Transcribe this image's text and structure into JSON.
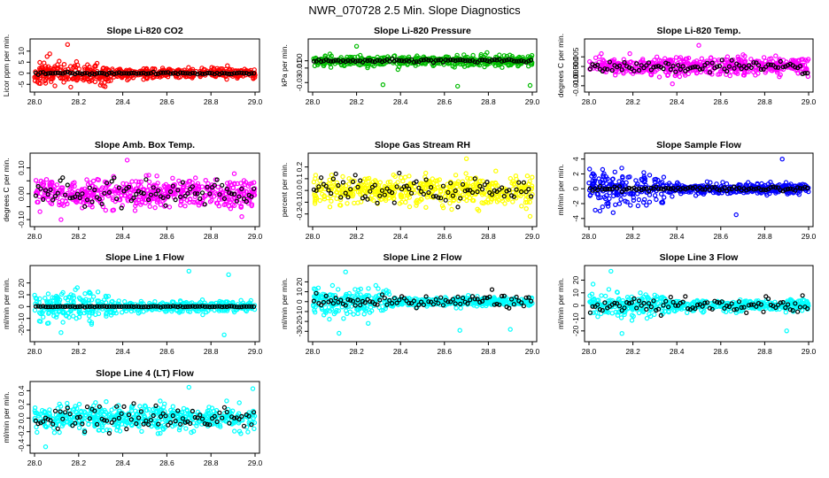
{
  "title": "NWR_070728  2.5 Min. Slope Diagnostics",
  "chart_data": [
    {
      "type": "scatter",
      "title": "Slope Li-820 CO2",
      "ylabel": "Licor ppm per min.",
      "color": "#ff0000",
      "xlim": [
        28.0,
        29.0
      ],
      "xticks": [
        "28.0",
        "28.2",
        "28.4",
        "28.6",
        "28.8",
        "29.0"
      ],
      "ylim": [
        -6.5,
        13.5
      ],
      "yticks": [
        -5,
        0,
        5,
        10
      ],
      "ytick_labels": [
        "-5",
        "0",
        "5",
        "10"
      ],
      "spread": 2.2,
      "early_spread": 4.5,
      "outliers": [
        [
          28.15,
          13
        ],
        [
          28.32,
          -6
        ],
        [
          28.05,
          -4.5
        ]
      ],
      "black_spread": 0.4,
      "seed": 11
    },
    {
      "type": "scatter",
      "title": "Slope Li-820 Pressure",
      "ylabel": "kPa per min.",
      "color": "#00bb00",
      "xlim": [
        28.0,
        29.0
      ],
      "xticks": [
        "28.0",
        "28.2",
        "28.4",
        "28.6",
        "28.8",
        "29.0"
      ],
      "ylim": [
        -0.037,
        0.024
      ],
      "yticks": [
        -0.03,
        -0.01,
        0.0
      ],
      "ytick_labels": [
        "-0.03",
        "-0.01",
        "0.00"
      ],
      "spread": 0.006,
      "early_spread": 0.006,
      "outliers": [
        [
          28.32,
          -0.033
        ],
        [
          28.66,
          -0.035
        ],
        [
          28.99,
          -0.034
        ],
        [
          28.2,
          0.02
        ]
      ],
      "black_spread": 0.002,
      "seed": 23
    },
    {
      "type": "scatter",
      "title": "Slope Li-820 Temp.",
      "ylabel": "degrees C per min.",
      "color": "#ff00ff",
      "xlim": [
        28.0,
        29.0
      ],
      "xticks": [
        "28.0",
        "28.2",
        "28.4",
        "28.6",
        "28.8",
        "29.0"
      ],
      "ylim": [
        -0.011,
        0.012
      ],
      "yticks": [
        -0.01,
        -0.005,
        0.0,
        0.005
      ],
      "ytick_labels": [
        "-0.010",
        "-0.005",
        "0.000",
        "0.005"
      ],
      "spread": 0.004,
      "early_spread": 0.004,
      "outliers": [
        [
          28.5,
          0.011
        ],
        [
          28.38,
          -0.009
        ]
      ],
      "black_spread": 0.003,
      "seed": 37
    },
    {
      "type": "scatter",
      "title": "Slope Amb. Box Temp.",
      "ylabel": "degrees C per min.",
      "color": "#ff00ff",
      "xlim": [
        28.0,
        29.0
      ],
      "xticks": [
        "28.0",
        "28.2",
        "28.4",
        "28.6",
        "28.8",
        "29.0"
      ],
      "ylim": [
        -0.11,
        0.14
      ],
      "yticks": [
        -0.1,
        0.0,
        0.1
      ],
      "ytick_labels": [
        "-0.10",
        "0.00",
        "0.10"
      ],
      "extra_ticks": [
        -0.05,
        0.05
      ],
      "spread": 0.05,
      "early_spread": 0.05,
      "outliers": [
        [
          28.42,
          0.13
        ],
        [
          28.12,
          -0.1
        ]
      ],
      "black_spread": 0.045,
      "seed": 41
    },
    {
      "type": "scatter",
      "title": "Slope Gas Stream RH",
      "ylabel": "percent per min.",
      "color": "#ffff00",
      "xlim": [
        28.0,
        29.0
      ],
      "xticks": [
        "28.0",
        "28.2",
        "28.4",
        "28.6",
        "28.8",
        "29.0"
      ],
      "ylim": [
        -0.27,
        0.28
      ],
      "yticks": [
        -0.2,
        -0.1,
        0.0,
        0.1,
        0.2
      ],
      "ytick_labels": [
        "-0.2",
        "-0.1",
        "0.0",
        "0.1",
        "0.2"
      ],
      "spread": 0.11,
      "early_spread": 0.11,
      "outliers": [
        [
          28.7,
          0.27
        ],
        [
          28.99,
          -0.22
        ]
      ],
      "black_spread": 0.09,
      "seed": 53
    },
    {
      "type": "scatter",
      "title": "Slope Sample Flow",
      "ylabel": "ml/min per min.",
      "color": "#0000ff",
      "xlim": [
        28.0,
        29.0
      ],
      "xticks": [
        "28.0",
        "28.2",
        "28.4",
        "28.6",
        "28.8",
        "29.0"
      ],
      "ylim": [
        -4.5,
        4.2
      ],
      "yticks": [
        -4,
        -2,
        0,
        2,
        4
      ],
      "ytick_labels": [
        "-4",
        "-2",
        "0",
        "2",
        "4"
      ],
      "spread": 0.6,
      "early_spread": 1.8,
      "outliers": [
        [
          28.88,
          4
        ],
        [
          28.67,
          -3.5
        ],
        [
          28.05,
          -3
        ]
      ],
      "black_spread": 0.25,
      "seed": 67
    },
    {
      "type": "scatter",
      "title": "Slope Line 1 Flow",
      "ylabel": "ml/min per min.",
      "color": "#00ffff",
      "xlim": [
        28.0,
        29.0
      ],
      "xticks": [
        "28.0",
        "28.2",
        "28.4",
        "28.6",
        "28.8",
        "29.0"
      ],
      "ylim": [
        -26,
        31
      ],
      "yticks": [
        -20,
        -10,
        0,
        10,
        20
      ],
      "ytick_labels": [
        "-20",
        "-10",
        "0",
        "10",
        "20"
      ],
      "spread": 4,
      "early_spread": 10,
      "outliers": [
        [
          28.7,
          30
        ],
        [
          28.12,
          -22
        ],
        [
          28.86,
          -24
        ],
        [
          28.88,
          27
        ]
      ],
      "black_spread": 0.3,
      "seed": 71
    },
    {
      "type": "scatter",
      "title": "Slope Line 2 Flow",
      "ylabel": "ml/min per min.",
      "color": "#00ffff",
      "xlim": [
        28.0,
        29.0
      ],
      "xticks": [
        "28.0",
        "28.2",
        "28.4",
        "28.6",
        "28.8",
        "29.0"
      ],
      "ylim": [
        -36,
        32
      ],
      "yticks": [
        -30,
        -20,
        -10,
        0,
        10,
        20
      ],
      "ytick_labels": [
        "-30",
        "-20",
        "-10",
        "0",
        "10",
        "20"
      ],
      "spread": 4,
      "early_spread": 12,
      "outliers": [
        [
          28.15,
          30
        ],
        [
          28.12,
          -32
        ],
        [
          28.67,
          -29
        ],
        [
          28.9,
          -28
        ]
      ],
      "black_spread": 6,
      "seed": 83
    },
    {
      "type": "scatter",
      "title": "Slope Line 3 Flow",
      "ylabel": "ml/min per min.",
      "color": "#00ffff",
      "xlim": [
        28.0,
        29.0
      ],
      "xticks": [
        "28.0",
        "28.2",
        "28.4",
        "28.6",
        "28.8",
        "29.0"
      ],
      "ylim": [
        -25,
        28
      ],
      "yticks": [
        -20,
        -10,
        0,
        10,
        20
      ],
      "ytick_labels": [
        "-20",
        "-10",
        "0",
        "10",
        "20"
      ],
      "spread": 4,
      "early_spread": 10,
      "outliers": [
        [
          28.1,
          27
        ],
        [
          28.15,
          -22
        ],
        [
          28.9,
          -20
        ]
      ],
      "black_spread": 5,
      "seed": 97
    },
    {
      "type": "scatter",
      "title": "Slope Line 4 (LT) Flow",
      "ylabel": "ml/min per min.",
      "color": "#00ffff",
      "xlim": [
        28.0,
        29.0
      ],
      "xticks": [
        "28.0",
        "28.2",
        "28.4",
        "28.6",
        "28.8",
        "29.0"
      ],
      "ylim": [
        -0.45,
        0.47
      ],
      "yticks": [
        -0.4,
        -0.2,
        0.0,
        0.2,
        0.4
      ],
      "ytick_labels": [
        "-0.4",
        "-0.2",
        "0.0",
        "0.2",
        "0.4"
      ],
      "spread": 0.16,
      "early_spread": 0.16,
      "outliers": [
        [
          28.7,
          0.45
        ],
        [
          28.99,
          0.43
        ],
        [
          28.05,
          -0.42
        ]
      ],
      "black_spread": 0.15,
      "seed": 101
    }
  ]
}
